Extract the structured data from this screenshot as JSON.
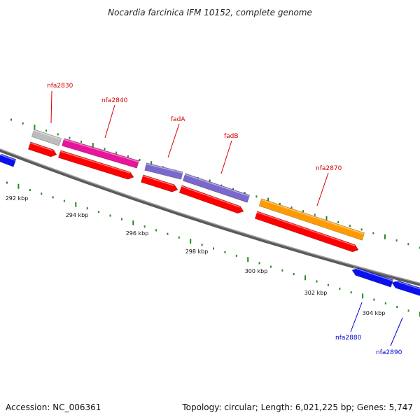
{
  "title": "Nocardia farcinica IFM 10152, complete genome",
  "footer": {
    "accession": "Accession: NC_006361",
    "topology": "Topology: circular; Length: 6,021,225 bp; Genes: 5,747"
  },
  "scale_labels": [
    "292 kbp",
    "294 kbp",
    "296 kbp",
    "298 kbp",
    "300 kbp",
    "302 kbp",
    "304 kbp"
  ],
  "gene_labels": {
    "nfa2830": "nfa2830",
    "nfa2840": "nfa2840",
    "fadA": "fadA",
    "fadB": "fadB",
    "nfa2870": "nfa2870",
    "nfa2880": "nfa2880",
    "nfa2890": "nfa2890"
  },
  "colors": {
    "backbone": "#8a8a8a",
    "tick": "#1f8a1f",
    "gene_red": "#ff0000",
    "gene_magenta": "#e6159b",
    "gene_purple": "#7a68cc",
    "gene_orange": "#ff9a00",
    "gene_grey": "#bdbdbd",
    "gene_blue": "#0b10ee",
    "label_red": "#d50000",
    "label_blue": "#0000d0"
  }
}
